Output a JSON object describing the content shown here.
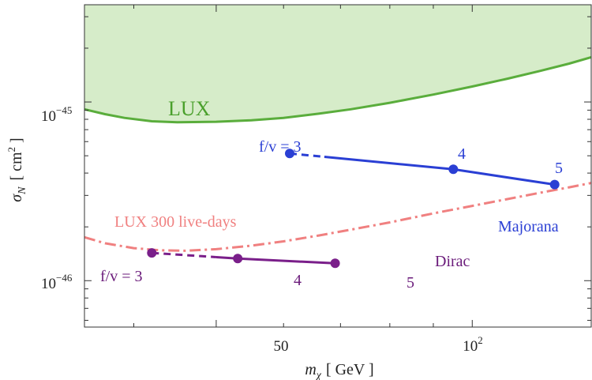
{
  "chart_data": {
    "type": "line",
    "xlabel": "m_χ [ GeV ]",
    "xlabel_parts": {
      "symbol": "m",
      "sub": "χ",
      "unit": "[ GeV ]"
    },
    "ylabel": "σ_N [ cm² ]",
    "ylabel_parts": {
      "symbol": "σ",
      "sub": "N",
      "unit_open": "[ cm",
      "unit_sup": "2",
      "unit_close": " ]"
    },
    "x_scale": "log",
    "y_scale": "log",
    "xlim": [
      35,
      138
    ],
    "ylim": [
      5.5e-47,
      3.5e-45
    ],
    "x_ticks": [
      {
        "value": 50,
        "label": "50",
        "major": true
      },
      {
        "value": 100,
        "label": "10",
        "sup": "2",
        "major": true
      }
    ],
    "x_minor_ticks": [
      40,
      60,
      70,
      80,
      90
    ],
    "y_ticks": [
      {
        "value": 1e-46,
        "label": "10",
        "sup": "−46"
      },
      {
        "value": 1e-45,
        "label": "10",
        "sup": "−45"
      }
    ],
    "y_minor_ticks": [
      6e-47,
      7e-47,
      8e-47,
      9e-47,
      2e-46,
      3e-46,
      4e-46,
      5e-46,
      6e-46,
      7e-46,
      8e-46,
      9e-46,
      2e-45,
      3e-45
    ],
    "grid": false,
    "legend": "none",
    "lux_exclusion": {
      "label": "LUX",
      "color": "#5aad3c",
      "fill": "#d6ecc9",
      "x": [
        35,
        37,
        39,
        42,
        45,
        50,
        55,
        60,
        66,
        72,
        80,
        90,
        100,
        110,
        120,
        130,
        138
      ],
      "y": [
        9.1e-46,
        8.55e-46,
        8.15e-46,
        7.8e-46,
        7.7e-46,
        7.75e-46,
        7.9e-46,
        8.15e-46,
        8.6e-46,
        9.1e-46,
        9.9e-46,
        1.1e-45,
        1.22e-45,
        1.35e-45,
        1.49e-45,
        1.64e-45,
        1.78e-45
      ]
    },
    "lux300_projection": {
      "label": "LUX 300 live-days",
      "color": "#f08080",
      "style": "dash-dot",
      "x": [
        35,
        37,
        40,
        43,
        46,
        50,
        55,
        60,
        66,
        72,
        80,
        90,
        100,
        110,
        120,
        130,
        138
      ],
      "y": [
        1.75e-46,
        1.62e-46,
        1.52e-46,
        1.48e-46,
        1.47e-46,
        1.5e-46,
        1.57e-46,
        1.66e-46,
        1.79e-46,
        1.93e-46,
        2.12e-46,
        2.38e-46,
        2.62e-46,
        2.86e-46,
        3.1e-46,
        3.33e-46,
        3.52e-46
      ]
    },
    "series": [
      {
        "name": "Majorana",
        "color": "#2a3fd4",
        "points": [
          {
            "x": 61,
            "y": 5.15e-46,
            "label": "f/v = 3"
          },
          {
            "x": 95,
            "y": 4.2e-46,
            "label": "4"
          },
          {
            "x": 125,
            "y": 3.45e-46,
            "label": "5"
          }
        ],
        "dashed_segment_end_x": 67
      },
      {
        "name": "Dirac",
        "color": "#7a1f8a",
        "points": [
          {
            "x": 42,
            "y": 1.43e-46,
            "label": "f/v = 3"
          },
          {
            "x": 53,
            "y": 1.33e-46,
            "label": "4"
          },
          {
            "x": 69,
            "y": 1.25e-46,
            "label": "5"
          }
        ],
        "dashed_segment_end_x": 50
      }
    ]
  }
}
